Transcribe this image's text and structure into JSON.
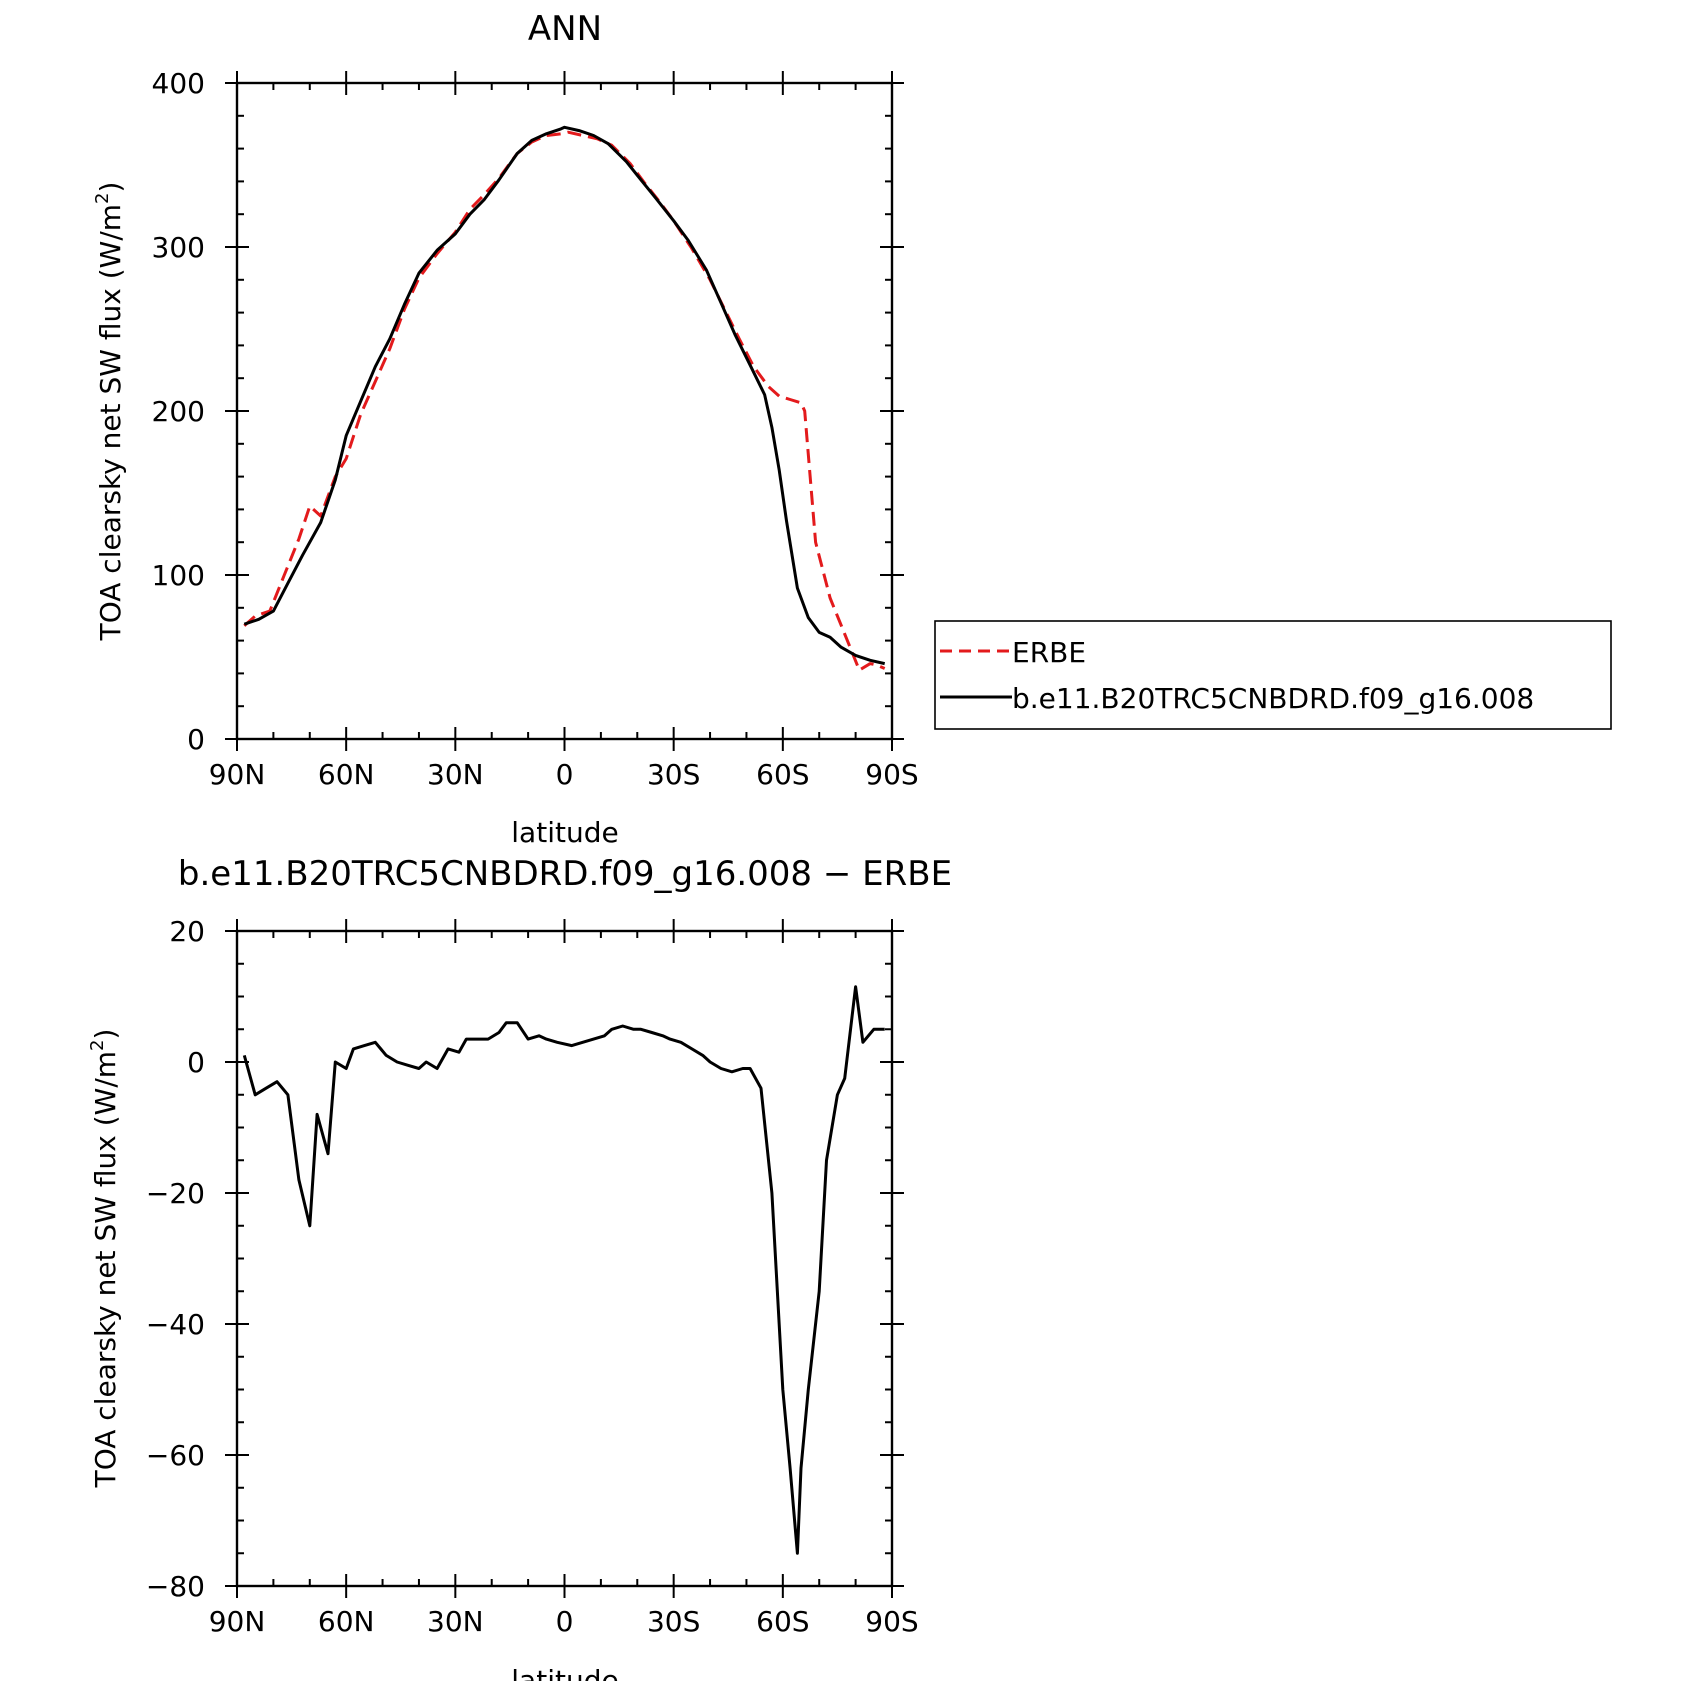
{
  "chart_data": [
    {
      "type": "line",
      "title": "ANN",
      "xlabel": "latitude",
      "ylabel": "TOA clearsky net SW flux (W/m",
      "ylabel_sup": "2",
      "ylabel_close": ")",
      "x_note": "x values are latitude in degrees, positive = north, negative = south",
      "xlim": [
        90,
        -90
      ],
      "ylim": [
        0,
        400
      ],
      "xticks": [
        "90N",
        "60N",
        "30N",
        "0",
        "30S",
        "60S",
        "90S"
      ],
      "xtick_values": [
        90,
        60,
        30,
        0,
        -30,
        -60,
        -90
      ],
      "yticks": [
        0,
        100,
        200,
        300,
        400
      ],
      "legend": "right",
      "series": [
        {
          "name": "ERBE",
          "color": "#e31a1c",
          "style": "dashed",
          "x": [
            88,
            85,
            81,
            77,
            73,
            70,
            67,
            63,
            60,
            56,
            52,
            48,
            44,
            40,
            35,
            30,
            26,
            22,
            18,
            13,
            9,
            5,
            1,
            -1,
            -5,
            -9,
            -13,
            -18,
            -22,
            -26,
            -30,
            -35,
            -40,
            -44,
            -48,
            -52,
            -56,
            -59,
            -62,
            -65,
            -66,
            -69,
            -73,
            -77,
            -81,
            -84,
            -86,
            -88
          ],
          "y": [
            69,
            75,
            78,
            100,
            122,
            142,
            136,
            160,
            171,
            198,
            218,
            238,
            262,
            281,
            296,
            309,
            323,
            332,
            342,
            357,
            364,
            368,
            369,
            370,
            368,
            366,
            362,
            351,
            339,
            328,
            316,
            299,
            280,
            262,
            244,
            227,
            215,
            209,
            207,
            205,
            200,
            120,
            86,
            64,
            42,
            46,
            45,
            43
          ]
        },
        {
          "name": "b.e11.B20TRC5CNBDRD.f09_g16.008",
          "color": "#000000",
          "style": "solid",
          "x": [
            88,
            84,
            80,
            76,
            72,
            67,
            63,
            60,
            56,
            52,
            48,
            44,
            40,
            35,
            30,
            26,
            22,
            18,
            13,
            9,
            5,
            1,
            0,
            -4,
            -8,
            -12,
            -17,
            -21,
            -25,
            -30,
            -34,
            -39,
            -43,
            -47,
            -51,
            -55,
            -57,
            -59,
            -61,
            -64,
            -67,
            -70,
            -73,
            -76,
            -80,
            -84,
            -88
          ],
          "y": [
            70,
            73,
            78,
            95,
            112,
            132,
            158,
            185,
            206,
            227,
            244,
            265,
            284,
            298,
            308,
            320,
            329,
            341,
            357,
            365,
            369,
            372,
            373,
            371,
            368,
            363,
            352,
            341,
            330,
            316,
            304,
            286,
            266,
            246,
            228,
            210,
            190,
            164,
            133,
            92,
            74,
            65,
            62,
            56,
            51,
            48,
            46
          ]
        }
      ]
    },
    {
      "type": "line",
      "title": "b.e11.B20TRC5CNBDRD.f09_g16.008 − ERBE",
      "xlabel": "latitude",
      "ylabel": "TOA clearsky net SW flux (W/m",
      "ylabel_sup": "2",
      "ylabel_close": ")",
      "x_note": "x values are latitude in degrees, positive = north, negative = south",
      "xlim": [
        90,
        -90
      ],
      "ylim": [
        -80,
        20
      ],
      "xticks": [
        "90N",
        "60N",
        "30N",
        "0",
        "30S",
        "60S",
        "90S"
      ],
      "xtick_values": [
        90,
        60,
        30,
        0,
        -30,
        -60,
        -90
      ],
      "yticks": [
        20,
        0,
        -20,
        -40,
        -60,
        -80
      ],
      "ytick_labels": [
        "20",
        "0",
        "−20",
        "−40",
        "−60",
        "−80"
      ],
      "series": [
        {
          "name": "",
          "color": "#000000",
          "style": "solid",
          "x": [
            88,
            85,
            82,
            79,
            76,
            73,
            70,
            68,
            65,
            63,
            60,
            58,
            55,
            52,
            49,
            46,
            43,
            40,
            38,
            35,
            32,
            29,
            27,
            24,
            21,
            18,
            16,
            13,
            10,
            7,
            5,
            2,
            -2,
            -5,
            -8,
            -11,
            -13,
            -16,
            -19,
            -21,
            -24,
            -27,
            -29,
            -32,
            -35,
            -38,
            -40,
            -43,
            -46,
            -49,
            -51,
            -54,
            -57,
            -60,
            -62,
            -64,
            -65,
            -67,
            -70,
            -72,
            -75,
            -77,
            -80,
            -82,
            -85,
            -88
          ],
          "y": [
            1,
            -5,
            -4,
            -3,
            -5,
            -18,
            -25,
            -8,
            -14,
            0,
            -1,
            2,
            2.5,
            3,
            1,
            0,
            -0.5,
            -1,
            0,
            -1,
            2,
            1.5,
            3.5,
            3.5,
            3.5,
            4.5,
            6,
            6,
            3.5,
            4,
            3.5,
            3,
            2.5,
            3,
            3.5,
            4,
            5,
            5.5,
            5,
            5,
            4.5,
            4,
            3.5,
            3,
            2,
            1,
            0,
            -1,
            -1.5,
            -1,
            -1,
            -4,
            -20,
            -50,
            -62,
            -75,
            -62,
            -50,
            -35,
            -15,
            -5,
            -2.5,
            11.5,
            3,
            5,
            5
          ]
        }
      ]
    }
  ],
  "legend": {
    "items": [
      {
        "label": "ERBE",
        "color": "#e31a1c",
        "style": "dashed"
      },
      {
        "label": "b.e11.B20TRC5CNBDRD.f09_g16.008",
        "color": "#000000",
        "style": "solid"
      }
    ]
  }
}
